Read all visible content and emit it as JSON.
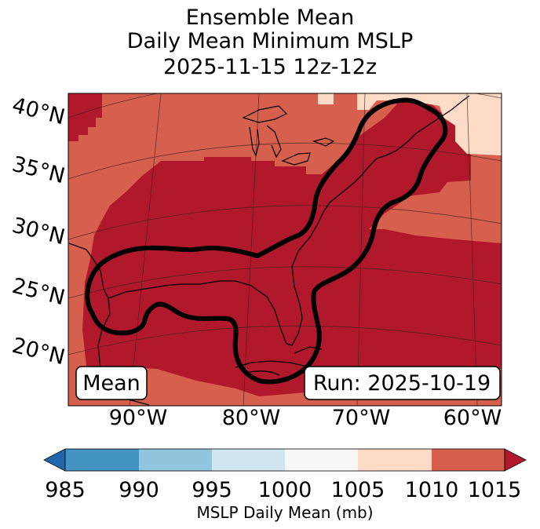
{
  "title": {
    "line1": "Ensemble Mean",
    "line2": "Daily Mean Minimum MSLP",
    "line3": "2025-11-15 12z-12z"
  },
  "map": {
    "lat_labels": [
      "40°N",
      "35°N",
      "30°N",
      "25°N",
      "20°N"
    ],
    "lon_labels": [
      "90°W",
      "80°W",
      "70°W",
      "60°W"
    ],
    "box_left": "Mean",
    "box_right": "Run: 2025-10-19",
    "region": "Eastern United States, Gulf of Mexico and Western Atlantic"
  },
  "colorbar": {
    "label": "MSLP Daily Mean (mb)",
    "ticks": [
      "985",
      "990",
      "995",
      "1000",
      "1005",
      "1010",
      "1015"
    ],
    "bins": [
      {
        "range": "985-990",
        "color": "#4393c3"
      },
      {
        "range": "990-995",
        "color": "#92c5de"
      },
      {
        "range": "995-1000",
        "color": "#d1e5f0"
      },
      {
        "range": "1000-1005",
        "color": "#f7f7f7"
      },
      {
        "range": "1005-1010",
        "color": "#fddbc7"
      },
      {
        "range": "1010-1015",
        "color": "#d6604d"
      }
    ],
    "under_color": "#2166ac",
    "over_color": "#b2182b"
  },
  "colors": {
    "field_1010_1015": "#d6604d",
    "field_above_1015": "#b2182b",
    "field_1005_1010": "#fddbc7",
    "contour": "#000000"
  }
}
